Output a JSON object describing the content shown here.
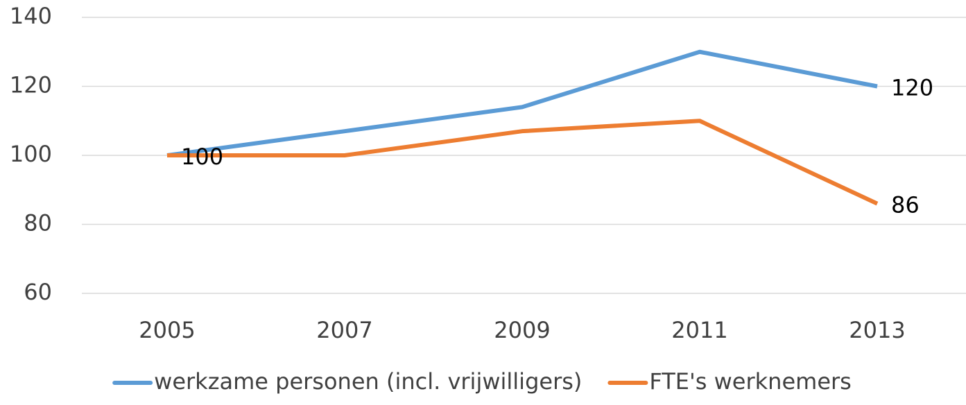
{
  "chart_data": {
    "type": "line",
    "categories": [
      "2005",
      "2007",
      "2009",
      "2011",
      "2013"
    ],
    "series": [
      {
        "name": "werkzame personen (incl. vrijwilligers)",
        "color": "#5b9bd5",
        "values": [
          100,
          107,
          114,
          130,
          120
        ],
        "value_labels": [
          "100",
          null,
          null,
          null,
          "120"
        ]
      },
      {
        "name": "FTE's werknemers",
        "color": "#ed7d31",
        "values": [
          100,
          100,
          107,
          110,
          86
        ],
        "value_labels": [
          null,
          null,
          null,
          null,
          "86"
        ]
      }
    ],
    "ylim": [
      60,
      140
    ],
    "yticks": [
      60,
      80,
      100,
      120,
      140
    ],
    "grid": true,
    "legend": "bottom"
  }
}
